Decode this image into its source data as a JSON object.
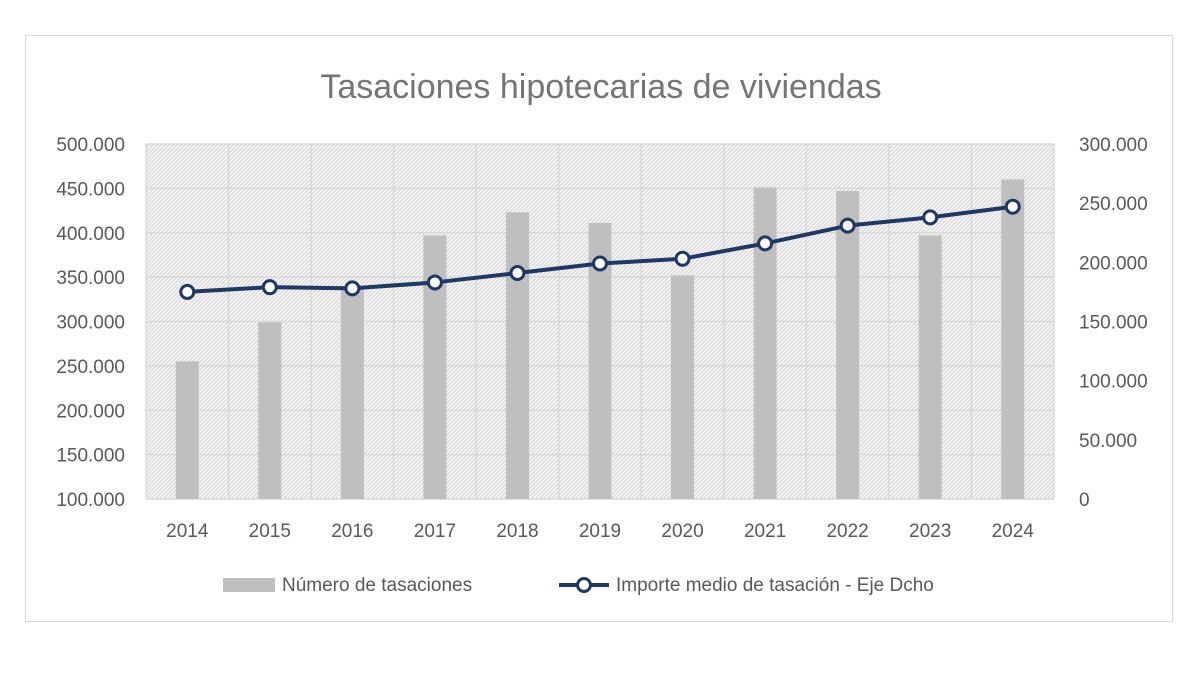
{
  "chart_data": {
    "type": "bar",
    "title": "Tasaciones hipotecarias de viviendas",
    "categories": [
      "2014",
      "2015",
      "2016",
      "2017",
      "2018",
      "2019",
      "2020",
      "2021",
      "2022",
      "2023",
      "2024"
    ],
    "series": [
      {
        "name": "Número de tasaciones",
        "type": "bar",
        "axis": "left",
        "color": "#bfbfbf",
        "values": [
          255000,
          299000,
          340000,
          397000,
          423000,
          411000,
          352000,
          451000,
          447000,
          397000,
          460000
        ]
      },
      {
        "name": "Importe medio de tasación - Eje Dcho",
        "type": "line",
        "axis": "right",
        "color": "#1f3864",
        "values": [
          175000,
          179000,
          178000,
          183000,
          191000,
          199000,
          203000,
          216000,
          231000,
          238000,
          247000
        ]
      }
    ],
    "y_left": {
      "min": 100000,
      "max": 500000,
      "ticks": [
        100000,
        150000,
        200000,
        250000,
        300000,
        350000,
        400000,
        450000,
        500000
      ],
      "tick_labels": [
        "100.000",
        "150.000",
        "200.000",
        "250.000",
        "300.000",
        "350.000",
        "400.000",
        "450.000",
        "500.000"
      ]
    },
    "y_right": {
      "min": 0,
      "max": 300000,
      "ticks": [
        0,
        50000,
        100000,
        150000,
        200000,
        250000,
        300000
      ],
      "tick_labels": [
        "0",
        "50.000",
        "100.000",
        "150.000",
        "200.000",
        "250.000",
        "300.000"
      ]
    },
    "grid": true,
    "legend_position": "bottom"
  }
}
